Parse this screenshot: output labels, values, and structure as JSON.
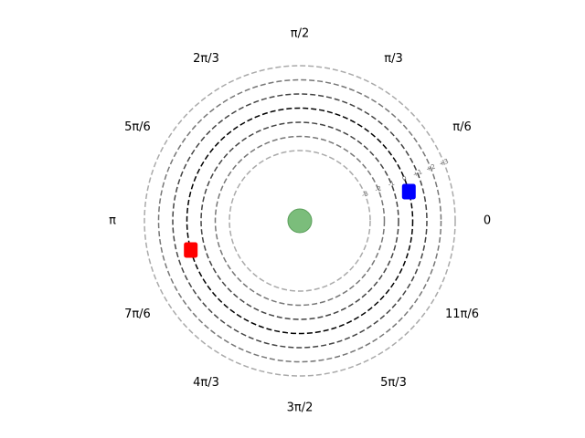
{
  "angle_labels": [
    {
      "text": "0",
      "angle_deg": 0
    },
    {
      "text": "π/6",
      "angle_deg": 30
    },
    {
      "text": "π/3",
      "angle_deg": 60
    },
    {
      "text": "π/2",
      "angle_deg": 90
    },
    {
      "text": "2π/3",
      "angle_deg": 120
    },
    {
      "text": "5π/6",
      "angle_deg": 150
    },
    {
      "text": "π",
      "angle_deg": 180
    },
    {
      "text": "7π/6",
      "angle_deg": 210
    },
    {
      "text": "4π/3",
      "angle_deg": 240
    },
    {
      "text": "3π/2",
      "angle_deg": 270
    },
    {
      "text": "5π/3",
      "angle_deg": 300
    },
    {
      "text": "11π/6",
      "angle_deg": 330
    }
  ],
  "rings": [
    {
      "label": "-3",
      "color": "#aaaaaa"
    },
    {
      "label": "-2",
      "color": "#777777"
    },
    {
      "label": "-1",
      "color": "#444444"
    },
    {
      "label": "0",
      "color": "#000000"
    },
    {
      "label": "+1",
      "color": "#444444"
    },
    {
      "label": "+2",
      "color": "#777777"
    },
    {
      "label": "+3",
      "color": "#aaaaaa"
    }
  ],
  "center_marker": {
    "color": "#7bbd7b"
  },
  "markers": [
    {
      "name": "blue-marker",
      "color": "#0000ff",
      "ring": "0",
      "angle_deg": 15
    },
    {
      "name": "red-marker",
      "color": "#ff0000",
      "ring": "0",
      "angle_deg": 195
    }
  ]
}
